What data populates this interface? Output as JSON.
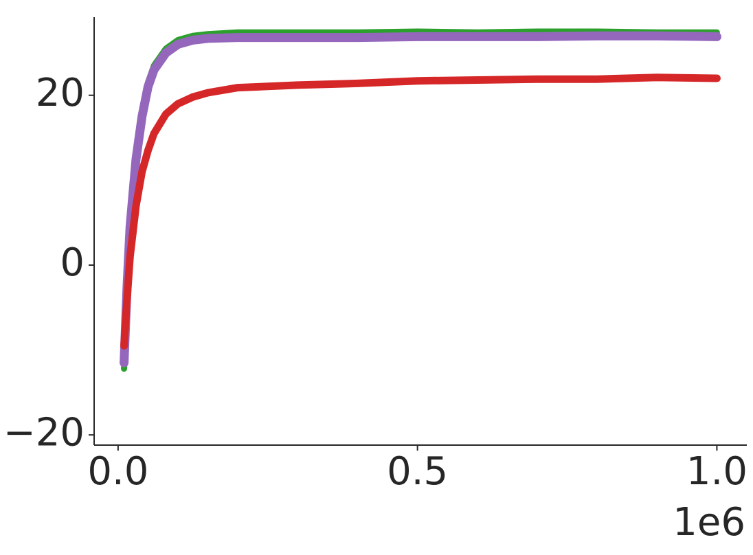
{
  "chart_data": {
    "type": "line",
    "x": [
      10000,
      15000,
      20000,
      30000,
      40000,
      50000,
      60000,
      80000,
      100000,
      125000,
      150000,
      200000,
      300000,
      400000,
      500000,
      600000,
      700000,
      800000,
      900000,
      1000000
    ],
    "series": [
      {
        "color": "#2ca02c",
        "values": [
          -12.2,
          -2,
          5,
          13,
          18,
          21.5,
          23.5,
          25.5,
          26.5,
          27.0,
          27.2,
          27.4,
          27.4,
          27.4,
          27.5,
          27.4,
          27.5,
          27.5,
          27.4,
          27.4
        ]
      },
      {
        "color": "#9467bd",
        "values": [
          -11.5,
          -2.5,
          4.5,
          12.5,
          17.5,
          21,
          23,
          25,
          26,
          26.5,
          26.7,
          26.8,
          26.8,
          26.8,
          26.9,
          26.9,
          26.9,
          27.0,
          27.0,
          26.9
        ]
      },
      {
        "color": "#d62728",
        "values": [
          -9.5,
          -4,
          1,
          7,
          11,
          13.5,
          15.5,
          17.8,
          19.0,
          19.8,
          20.3,
          20.9,
          21.2,
          21.4,
          21.7,
          21.8,
          21.9,
          21.9,
          22.1,
          22.0
        ]
      }
    ],
    "xlim": [
      -40000,
      1050000
    ],
    "xticks": [
      {
        "value": 0,
        "label": "0.0"
      },
      {
        "value": 500000,
        "label": "0.5"
      },
      {
        "value": 1000000,
        "label": "1.0"
      }
    ],
    "x_offset_label": "1e6",
    "ylim": [
      -21.2,
      29.2
    ],
    "yticks": [
      {
        "value": -20,
        "label": "−20"
      },
      0,
      20
    ]
  }
}
